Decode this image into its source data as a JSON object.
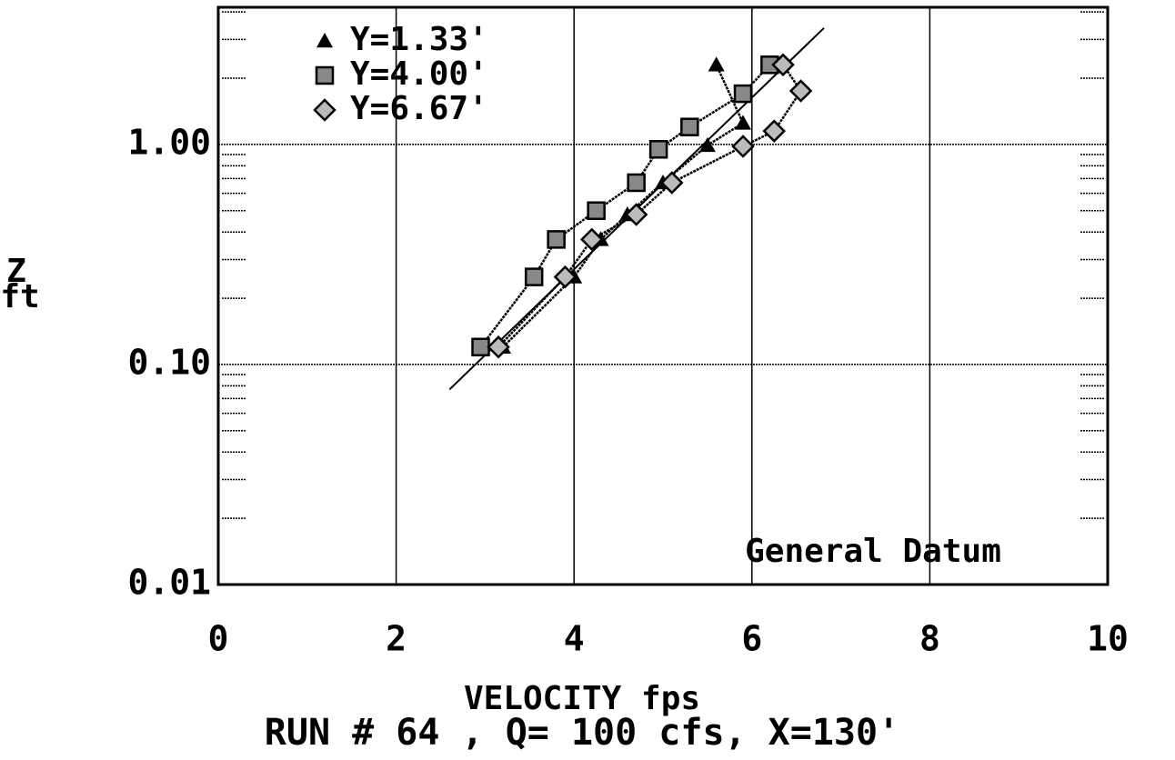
{
  "chart_data": {
    "type": "line",
    "title": "RUN # 64 , Q= 100 cfs, X=130'",
    "xlabel": "VELOCITY  fps",
    "ylabel": [
      "Z",
      "ft"
    ],
    "annotation": "General Datum",
    "xlim": [
      0,
      10
    ],
    "xticks": [
      0,
      2,
      4,
      6,
      8,
      10
    ],
    "ylim": [
      0.01,
      4.2
    ],
    "yscale": "log",
    "yticks": [
      0.01,
      {
        "value": 0.1,
        "label": "0.10"
      },
      {
        "value": 1,
        "label": "1.00"
      }
    ],
    "yminor": [
      0.02,
      0.03,
      0.04,
      0.05,
      0.06,
      0.07,
      0.08,
      0.09,
      0.2,
      0.3,
      0.4,
      0.5,
      0.6,
      0.7,
      0.8,
      0.9,
      2,
      3,
      4
    ],
    "grid": true,
    "legend": "upper left",
    "series": [
      {
        "name": "Y=1.33'",
        "color": "#000000",
        "marker": "triangle",
        "x": [
          3.2,
          4.0,
          4.3,
          4.6,
          5.0,
          5.5,
          5.9,
          5.6
        ],
        "values": [
          0.12,
          0.25,
          0.37,
          0.48,
          0.67,
          0.99,
          1.25,
          2.3
        ]
      },
      {
        "name": "Y=4.00'",
        "color": "#000000",
        "marker": "square",
        "x": [
          2.95,
          3.55,
          3.8,
          4.25,
          4.7,
          4.95,
          5.3,
          5.9,
          6.2
        ],
        "values": [
          0.12,
          0.25,
          0.37,
          0.5,
          0.67,
          0.95,
          1.2,
          1.7,
          2.3
        ]
      },
      {
        "name": "Y=6.67'",
        "color": "#000000",
        "marker": "diamond",
        "x": [
          3.15,
          3.9,
          4.2,
          4.7,
          5.1,
          5.9,
          6.25,
          6.55,
          6.35
        ],
        "values": [
          0.12,
          0.25,
          0.37,
          0.48,
          0.67,
          0.98,
          1.15,
          1.75,
          2.3
        ]
      }
    ],
    "fit_line": {
      "color": "#000000",
      "x": [
        2.6,
        6.81
      ],
      "values": [
        0.077,
        3.38
      ]
    }
  }
}
